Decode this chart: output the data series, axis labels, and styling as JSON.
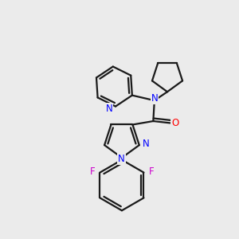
{
  "bg_color": "#ebebeb",
  "bond_color": "#1a1a1a",
  "N_color": "#0000ff",
  "O_color": "#ff0000",
  "F_color": "#cc00cc",
  "bond_width": 1.6,
  "figsize": [
    3.0,
    3.0
  ],
  "dpi": 100,
  "xlim": [
    0,
    10
  ],
  "ylim": [
    0,
    10
  ]
}
